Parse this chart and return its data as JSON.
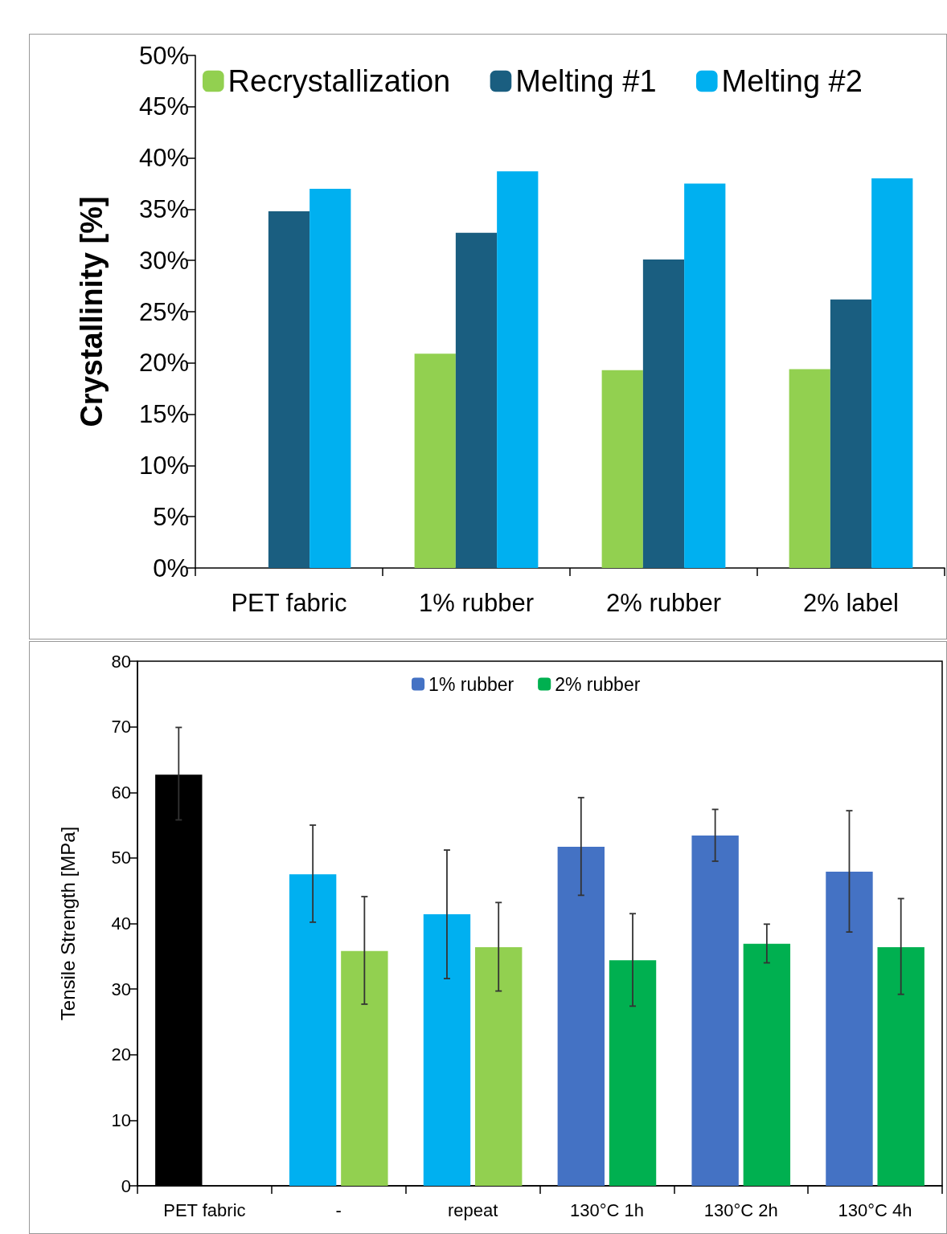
{
  "chart_data": [
    {
      "type": "bar",
      "ylabel": "Crystallinity [%]",
      "categories": [
        "PET fabric",
        "1% rubber",
        "2% rubber",
        "2% label"
      ],
      "series": [
        {
          "name": "Recrystallization",
          "color": "#92d050",
          "values": [
            null,
            20.9,
            19.3,
            19.4
          ]
        },
        {
          "name": "Melting #1",
          "color": "#1a5e80",
          "values": [
            34.8,
            32.7,
            30.1,
            26.2
          ]
        },
        {
          "name": "Melting #2",
          "color": "#00b0f0",
          "values": [
            37.0,
            38.7,
            37.5,
            38.0
          ]
        }
      ],
      "ylim": [
        0,
        50
      ],
      "yticks": [
        {
          "value": 0,
          "label": "0%"
        },
        {
          "value": 5,
          "label": "5%"
        },
        {
          "value": 10,
          "label": "10%"
        },
        {
          "value": 15,
          "label": "15%"
        },
        {
          "value": 20,
          "label": "20%"
        },
        {
          "value": 25,
          "label": "25%"
        },
        {
          "value": 30,
          "label": "30%"
        },
        {
          "value": 35,
          "label": "35%"
        },
        {
          "value": 40,
          "label": "40%"
        },
        {
          "value": 45,
          "label": "45%"
        },
        {
          "value": 50,
          "label": "50%"
        }
      ],
      "grid": false,
      "legend": "top"
    },
    {
      "type": "bar",
      "ylabel": "Tensile Strength [MPa]",
      "categories": [
        "PET fabric",
        "-",
        "repeat",
        "130°C 1h",
        "130°C 2h",
        "130°C 4h"
      ],
      "series": [
        {
          "color": "#000000",
          "values": [
            62.7,
            null,
            null,
            null,
            null,
            null
          ],
          "errors": [
            [
              55.8,
              69.9
            ],
            null,
            null,
            null,
            null,
            null
          ]
        },
        {
          "name": "1% rubber",
          "color": "#4472c4",
          "colors": [
            null,
            "#00b0f0",
            "#00b0f0",
            "#4472c4",
            "#4472c4",
            "#4472c4"
          ],
          "values": [
            null,
            47.5,
            41.4,
            51.7,
            53.4,
            47.9
          ],
          "errors": [
            null,
            [
              40.2,
              55.0
            ],
            [
              31.6,
              51.2
            ],
            [
              44.3,
              59.2
            ],
            [
              49.5,
              57.4
            ],
            [
              38.7,
              57.2
            ]
          ]
        },
        {
          "name": "2% rubber",
          "color": "#00b050",
          "colors": [
            null,
            "#92d050",
            "#92d050",
            "#00b050",
            "#00b050",
            "#00b050"
          ],
          "values": [
            null,
            35.8,
            36.4,
            34.4,
            36.9,
            36.4
          ],
          "errors": [
            null,
            [
              27.7,
              44.1
            ],
            [
              29.7,
              43.2
            ],
            [
              27.4,
              41.5
            ],
            [
              34.0,
              39.9
            ],
            [
              29.2,
              43.8
            ]
          ]
        }
      ],
      "ylim": [
        0,
        80
      ],
      "yticks": [
        0,
        10,
        20,
        30,
        40,
        50,
        60,
        70,
        80
      ],
      "grid": false,
      "legend": "top"
    }
  ]
}
